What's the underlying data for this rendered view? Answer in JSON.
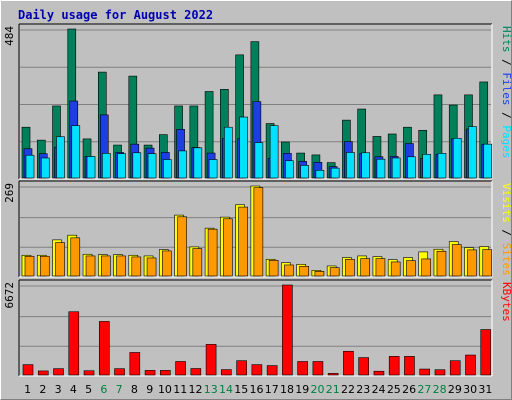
{
  "title": "Daily usage for August 2022",
  "colors": {
    "hits": "#00805a",
    "files": "#1c3ee4",
    "pages": "#00e0ff",
    "visits": "#ffff00",
    "sites": "#ff9900",
    "kbytes": "#ff0000",
    "weekend_label": "#008040",
    "weekday_label": "#000000"
  },
  "chart_data": [
    {
      "type": "bar",
      "title": "Daily usage for August 2022",
      "categories": [
        "1",
        "2",
        "3",
        "4",
        "5",
        "6",
        "7",
        "8",
        "9",
        "10",
        "11",
        "12",
        "13",
        "14",
        "15",
        "16",
        "17",
        "18",
        "19",
        "20",
        "21",
        "22",
        "23",
        "24",
        "25",
        "26",
        "27",
        "28",
        "29",
        "30",
        "31"
      ],
      "weekend_days": [
        "6",
        "7",
        "13",
        "14",
        "20",
        "21",
        "27",
        "28"
      ],
      "y_max_label": "484",
      "ylim": [
        0,
        484
      ],
      "series_label_parts": [
        "Pages",
        "Files",
        "Hits"
      ],
      "series": [
        {
          "name": "Hits",
          "values": [
            165,
            123,
            234,
            484,
            127,
            344,
            107,
            331,
            107,
            141,
            234,
            234,
            281,
            288,
            400,
            443,
            177,
            117,
            81,
            75,
            50,
            188,
            224,
            135,
            143,
            165,
            155,
            270,
            237,
            270,
            312
          ]
        },
        {
          "name": "Files",
          "values": [
            95,
            79,
            100,
            250,
            70,
            205,
            83,
            110,
            97,
            83,
            158,
            99,
            81,
            128,
            128,
            248,
            64,
            80,
            54,
            51,
            37,
            118,
            80,
            69,
            70,
            112,
            64,
            77,
            127,
            159,
            109
          ]
        },
        {
          "name": "Pages",
          "values": [
            74,
            65,
            134,
            170,
            70,
            80,
            79,
            82,
            79,
            60,
            88,
            98,
            60,
            165,
            198,
            115,
            170,
            56,
            41,
            25,
            32,
            83,
            82,
            61,
            65,
            69,
            77,
            80,
            129,
            167,
            110
          ]
        }
      ]
    },
    {
      "type": "bar",
      "categories": [
        "1",
        "2",
        "3",
        "4",
        "5",
        "6",
        "7",
        "8",
        "9",
        "10",
        "11",
        "12",
        "13",
        "14",
        "15",
        "16",
        "17",
        "18",
        "19",
        "20",
        "21",
        "22",
        "23",
        "24",
        "25",
        "26",
        "27",
        "28",
        "29",
        "30",
        "31"
      ],
      "y_max_label": "269",
      "ylim": [
        0,
        269
      ],
      "series_label_parts": [
        "Sites",
        "Visits"
      ],
      "series": [
        {
          "name": "Visits",
          "values": [
            62,
            62,
            108,
            122,
            65,
            64,
            64,
            62,
            60,
            79,
            182,
            87,
            143,
            176,
            213,
            269,
            50,
            40,
            35,
            17,
            30,
            55,
            60,
            58,
            49,
            55,
            72,
            80,
            103,
            85,
            88
          ]
        },
        {
          "name": "Sites",
          "values": [
            59,
            59,
            100,
            114,
            60,
            60,
            60,
            57,
            54,
            75,
            177,
            82,
            140,
            171,
            206,
            264,
            47,
            33,
            29,
            14,
            25,
            50,
            52,
            52,
            42,
            46,
            51,
            74,
            94,
            78,
            79
          ]
        }
      ]
    },
    {
      "type": "bar",
      "categories": [
        "1",
        "2",
        "3",
        "4",
        "5",
        "6",
        "7",
        "8",
        "9",
        "10",
        "11",
        "12",
        "13",
        "14",
        "15",
        "16",
        "17",
        "18",
        "19",
        "20",
        "21",
        "22",
        "23",
        "24",
        "25",
        "26",
        "27",
        "28",
        "29",
        "30",
        "31"
      ],
      "y_max_label": "6672",
      "ylim": [
        0,
        6672
      ],
      "series_label_parts": [
        "KBytes"
      ],
      "series": [
        {
          "name": "KBytes",
          "values": [
            770,
            300,
            470,
            4690,
            315,
            3970,
            470,
            1670,
            340,
            340,
            1000,
            480,
            2270,
            400,
            1060,
            770,
            700,
            6672,
            1000,
            1000,
            120,
            1760,
            1290,
            280,
            1380,
            1380,
            440,
            390,
            1060,
            1480,
            3370
          ]
        }
      ]
    }
  ]
}
